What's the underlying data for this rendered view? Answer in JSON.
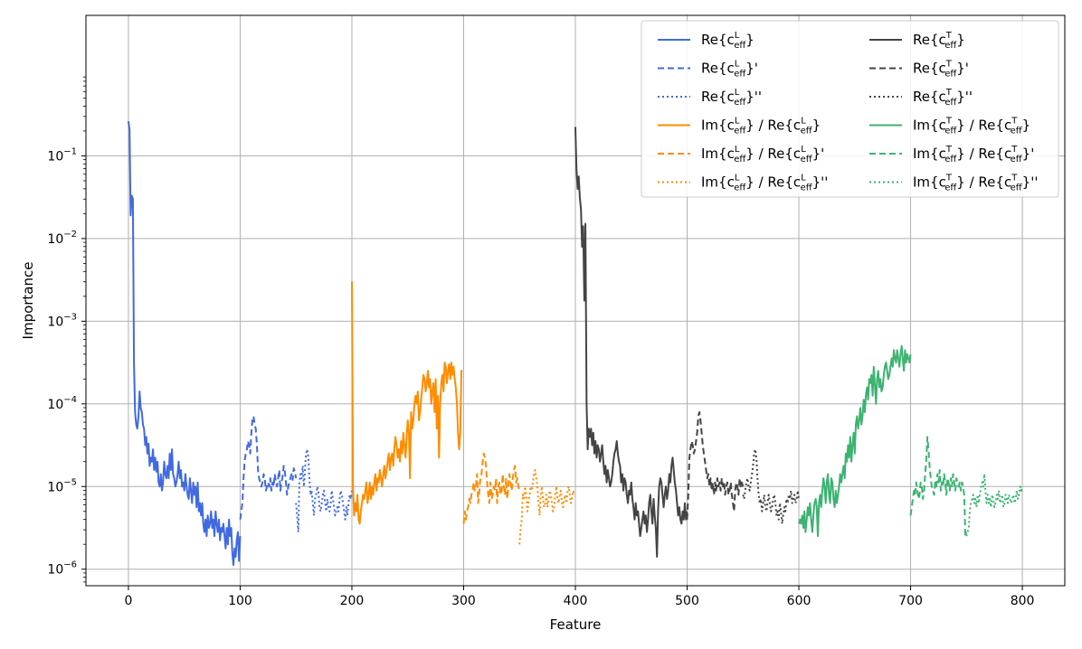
{
  "chart_data": {
    "type": "line",
    "xlabel": "Feature",
    "ylabel": "Importance",
    "xlim": [
      -38,
      838
    ],
    "ylim_log10": [
      -6.2,
      0.7
    ],
    "yscale": "log",
    "grid": true,
    "legend_position": "top-right",
    "legend_columns": 2,
    "x_ticks": [
      0,
      100,
      200,
      300,
      400,
      500,
      600,
      700,
      800
    ],
    "x_tick_labels": [
      "0",
      "100",
      "200",
      "300",
      "400",
      "500",
      "600",
      "700",
      "800"
    ],
    "y_ticks_log10": [
      -6,
      -5,
      -4,
      -3,
      -2,
      -1
    ],
    "y_tick_labels": [
      {
        "base": "10",
        "exp": "−6"
      },
      {
        "base": "10",
        "exp": "−5"
      },
      {
        "base": "10",
        "exp": "−4"
      },
      {
        "base": "10",
        "exp": "−3"
      },
      {
        "base": "10",
        "exp": "−2"
      },
      {
        "base": "10",
        "exp": "−1"
      }
    ],
    "series": [
      {
        "name": "Re{c_eff^L}",
        "legend": {
          "pre": "Re{c",
          "sub": "eff",
          "sup": "L",
          "post": "}"
        },
        "color": "#4169e1",
        "dash": "solid",
        "x_start": 0,
        "log10_values": [
          -0.58,
          -0.68,
          -1.72,
          -1.48,
          -1.52,
          -3.5,
          -4.1,
          -4.25,
          -4.3,
          -4.15,
          -3.85,
          -4.05,
          -4.1,
          -4.25,
          -4.3,
          -4.5,
          -4.4,
          -4.6,
          -4.48,
          -4.75,
          -4.65,
          -4.7,
          -4.55,
          -4.8,
          -4.65,
          -4.82,
          -4.7,
          -4.95,
          -5.0,
          -4.85,
          -5.05,
          -4.95,
          -4.7,
          -4.85,
          -4.9,
          -4.75,
          -4.9,
          -4.6,
          -4.8,
          -4.55,
          -4.85,
          -4.9,
          -5.0,
          -4.95,
          -4.85,
          -4.7,
          -4.9,
          -4.8,
          -5.0,
          -4.95,
          -5.05,
          -4.85,
          -5.0,
          -5.1,
          -5.15,
          -4.9,
          -5.05,
          -5.2,
          -4.95,
          -5.1,
          -5.0,
          -5.25,
          -4.95,
          -5.3,
          -5.2,
          -5.35,
          -5.2,
          -5.45,
          -5.55,
          -5.4,
          -5.6,
          -5.35,
          -5.5,
          -5.45,
          -5.3,
          -5.5,
          -5.4,
          -5.6,
          -5.3,
          -5.45,
          -5.55,
          -5.4,
          -5.65,
          -5.5,
          -5.55,
          -5.45,
          -5.6,
          -5.75,
          -5.5,
          -5.7,
          -5.4,
          -5.6,
          -5.5,
          -5.8,
          -5.95,
          -5.75,
          -5.85,
          -5.65,
          -5.55,
          -5.9,
          -5.6
        ],
        "smooth": false
      },
      {
        "name": "Re{c_eff^L}'",
        "legend": {
          "pre": "Re{c",
          "sub": "eff",
          "sup": "L",
          "post": "}'"
        },
        "color": "#4169e1",
        "dash": "dashed",
        "x_start": 100,
        "log10_values": [
          -5.4,
          -5.3,
          -5.2,
          -4.9,
          -4.7,
          -4.6,
          -4.55,
          -4.45,
          -4.5,
          -4.6,
          -4.35,
          -4.2,
          -4.15,
          -4.25,
          -4.3,
          -4.5,
          -4.8,
          -4.9,
          -4.95,
          -5.0,
          -4.95,
          -4.85,
          -4.9,
          -5.05,
          -5.0,
          -4.95,
          -5.0,
          -4.9,
          -5.05,
          -4.95,
          -5.0,
          -4.85,
          -4.95,
          -5.0,
          -4.9,
          -4.8,
          -5.05,
          -4.95,
          -4.88,
          -4.75,
          -4.82,
          -4.95,
          -5.1,
          -5.0,
          -4.95,
          -4.9,
          -4.85,
          -4.92,
          -4.78,
          -4.82,
          -4.9
        ],
        "smooth": false
      },
      {
        "name": "Re{c_eff^L}''",
        "legend": {
          "pre": "Re{c",
          "sub": "eff",
          "sup": "L",
          "post": "}''"
        },
        "color": "#4169e1",
        "dash": "dotted",
        "x_start": 150,
        "log10_values": [
          -5.2,
          -5.35,
          -5.55,
          -4.95,
          -4.85,
          -4.9,
          -4.75,
          -5.0,
          -4.8,
          -4.6,
          -4.55,
          -4.65,
          -4.9,
          -5.1,
          -5.05,
          -5.2,
          -5.35,
          -5.15,
          -5.1,
          -5.0,
          -5.05,
          -5.25,
          -5.3,
          -5.2,
          -5.1,
          -5.05,
          -5.2,
          -5.3,
          -5.15,
          -5.25,
          -5.3,
          -5.2,
          -5.05,
          -5.15,
          -5.25,
          -5.35,
          -5.3,
          -5.25,
          -5.3,
          -5.15,
          -5.05,
          -5.1,
          -5.2,
          -5.3,
          -5.4,
          -5.25,
          -5.35,
          -5.2,
          -5.1,
          -5.15,
          -5.05
        ],
        "smooth": false
      },
      {
        "name": "Im{c_eff^L} / Re{c_eff^L}",
        "legend": {
          "pre": "Im{c",
          "sub": "eff",
          "sup": "L",
          "post": "} / Re{c",
          "sub2": "eff",
          "sup2": "L",
          "post2": "}"
        },
        "color": "#ff8c00",
        "dash": "solid",
        "x_start": 200,
        "log10_values": [
          -2.52,
          -5.0,
          -5.35,
          -5.2,
          -5.3,
          -5.1,
          -5.4,
          -5.45,
          -5.3,
          -5.2,
          -5.1,
          -5.15,
          -5.05,
          -4.95,
          -5.2,
          -5.1,
          -4.95,
          -5.15,
          -5.0,
          -5.1,
          -4.95,
          -4.85,
          -5.05,
          -4.9,
          -4.95,
          -4.8,
          -4.9,
          -5.0,
          -4.85,
          -4.75,
          -4.9,
          -4.8,
          -4.7,
          -4.6,
          -4.8,
          -4.65,
          -4.6,
          -4.75,
          -4.55,
          -4.4,
          -4.5,
          -4.65,
          -4.55,
          -4.7,
          -4.45,
          -4.6,
          -4.35,
          -4.5,
          -4.65,
          -4.4,
          -4.2,
          -4.35,
          -4.9,
          -4.1,
          -4.3,
          -4.2,
          -4.0,
          -3.9,
          -4.0,
          -3.85,
          -4.2,
          -4.1,
          -3.95,
          -3.8,
          -3.65,
          -3.7,
          -3.85,
          -3.75,
          -3.6,
          -3.8,
          -3.7,
          -4.0,
          -3.85,
          -3.75,
          -4.1,
          -3.7,
          -4.3,
          -3.9,
          -4.65,
          -4.0,
          -3.75,
          -3.65,
          -3.85,
          -3.5,
          -3.55,
          -3.75,
          -3.6,
          -3.52,
          -3.7,
          -3.5,
          -3.65,
          -3.55,
          -3.7,
          -3.8,
          -4.0,
          -4.35,
          -4.55,
          -4.35,
          -3.6,
          -3.6
        ],
        "smooth": false
      },
      {
        "name": "Im{c_eff^L} / Re{c_eff^L}'",
        "legend": {
          "pre": "Im{c",
          "sub": "eff",
          "sup": "L",
          "post": "} / Re{c",
          "sub2": "eff",
          "sup2": "L",
          "post2": "}'"
        },
        "color": "#ff8c00",
        "dash": "dashed",
        "x_start": 300,
        "log10_values": [
          -5.45,
          -5.3,
          -5.4,
          -5.3,
          -5.25,
          -5.15,
          -5.2,
          -5.1,
          -5.05,
          -4.95,
          -5.05,
          -5.0,
          -4.85,
          -5.2,
          -5.05,
          -4.9,
          -4.85,
          -4.7,
          -4.6,
          -4.65,
          -4.75,
          -4.95,
          -5.1,
          -5.2,
          -4.95,
          -5.15,
          -5.1,
          -5.0,
          -5.05,
          -4.9,
          -5.2,
          -5.0,
          -4.95,
          -5.1,
          -5.05,
          -4.85,
          -5.0,
          -5.1,
          -4.9,
          -5.15,
          -5.0,
          -4.85,
          -4.95,
          -5.05,
          -4.9,
          -4.8,
          -4.75,
          -4.95,
          -4.9,
          -5.0,
          -5.05
        ],
        "smooth": false
      },
      {
        "name": "Im{c_eff^L} / Re{c_eff^L}''",
        "legend": {
          "pre": "Im{c",
          "sub": "eff",
          "sup": "L",
          "post": "} / Re{c",
          "sub2": "eff",
          "sup2": "L",
          "post2": "}''"
        },
        "color": "#ff8c00",
        "dash": "dotted",
        "x_start": 350,
        "log10_values": [
          -5.7,
          -5.5,
          -5.4,
          -5.1,
          -5.15,
          -5.0,
          -5.1,
          -5.3,
          -5.2,
          -5.1,
          -5.0,
          -5.05,
          -4.95,
          -4.85,
          -4.8,
          -4.9,
          -5.0,
          -5.2,
          -5.35,
          -5.1,
          -5.0,
          -5.15,
          -5.25,
          -5.2,
          -5.1,
          -5.25,
          -5.15,
          -5.05,
          -5.1,
          -5.2,
          -5.3,
          -5.25,
          -5.1,
          -5.0,
          -5.15,
          -5.2,
          -5.1,
          -5.05,
          -5.2,
          -5.25,
          -5.15,
          -5.1,
          -5.2,
          -5.05,
          -5.0,
          -5.1,
          -5.2,
          -5.15,
          -5.05,
          -5.1,
          -5.1
        ],
        "smooth": false
      },
      {
        "name": "Re{c_eff^T}",
        "legend": {
          "pre": "Re{c",
          "sub": "eff",
          "sup": "T",
          "post": "}"
        },
        "color": "#444444",
        "dash": "solid",
        "x_start": 400,
        "log10_values": [
          -0.65,
          -1.15,
          -1.4,
          -1.25,
          -1.5,
          -1.65,
          -2.1,
          -1.85,
          -2.75,
          -1.82,
          -4.0,
          -4.55,
          -4.3,
          -4.4,
          -4.3,
          -4.5,
          -4.35,
          -4.6,
          -4.45,
          -4.65,
          -4.5,
          -4.55,
          -4.7,
          -4.6,
          -4.5,
          -4.7,
          -4.85,
          -4.75,
          -4.95,
          -4.8,
          -4.9,
          -5.0,
          -4.95,
          -4.85,
          -4.7,
          -4.6,
          -4.55,
          -4.45,
          -4.6,
          -4.7,
          -4.75,
          -4.95,
          -4.85,
          -5.05,
          -4.9,
          -4.95,
          -5.1,
          -5.2,
          -5.05,
          -5.1,
          -4.95,
          -5.15,
          -5.25,
          -5.4,
          -5.2,
          -5.35,
          -5.3,
          -5.45,
          -5.6,
          -5.5,
          -5.4,
          -5.3,
          -5.45,
          -5.35,
          -5.55,
          -5.4,
          -5.2,
          -5.1,
          -5.3,
          -5.45,
          -5.15,
          -5.35,
          -5.5,
          -5.85,
          -5.3,
          -5.0,
          -4.9,
          -4.95,
          -5.1,
          -5.25,
          -5.1,
          -5.0,
          -5.15,
          -5.05,
          -4.85,
          -4.95,
          -4.75,
          -4.65,
          -4.8,
          -4.95,
          -5.05,
          -5.2,
          -5.35,
          -5.25,
          -5.4,
          -5.45,
          -5.3,
          -5.4,
          -5.2,
          -5.4,
          -5.3
        ],
        "smooth": false
      },
      {
        "name": "Re{c_eff^T}'",
        "legend": {
          "pre": "Re{c",
          "sub": "eff",
          "sup": "T",
          "post": "}'"
        },
        "color": "#444444",
        "dash": "dashed",
        "x_start": 500,
        "log10_values": [
          -5.4,
          -5.1,
          -4.65,
          -4.55,
          -4.45,
          -4.5,
          -4.6,
          -4.55,
          -4.45,
          -4.35,
          -4.15,
          -4.1,
          -4.2,
          -4.35,
          -4.5,
          -4.6,
          -4.7,
          -4.8,
          -4.9,
          -4.85,
          -5.0,
          -4.9,
          -5.05,
          -4.95,
          -5.1,
          -4.95,
          -5.05,
          -4.9,
          -5.0,
          -4.95,
          -5.05,
          -4.9,
          -5.0,
          -4.95,
          -5.1,
          -5.0,
          -4.95,
          -5.1,
          -5.05,
          -4.95,
          -5.1,
          -5.2,
          -5.3,
          -5.05,
          -4.95,
          -5.0,
          -5.1,
          -4.9,
          -5.0,
          -4.95,
          -5.0
        ],
        "smooth": false
      },
      {
        "name": "Re{c_eff^T}''",
        "legend": {
          "pre": "Re{c",
          "sub": "eff",
          "sup": "T",
          "post": "}''"
        },
        "color": "#444444",
        "dash": "dotted",
        "x_start": 550,
        "log10_values": [
          -5.1,
          -5.15,
          -5.05,
          -4.95,
          -4.9,
          -5.0,
          -5.05,
          -4.95,
          -4.85,
          -4.75,
          -4.6,
          -4.55,
          -4.65,
          -4.9,
          -5.1,
          -5.2,
          -5.15,
          -5.3,
          -5.2,
          -5.1,
          -5.25,
          -5.3,
          -5.2,
          -5.1,
          -5.2,
          -5.3,
          -5.25,
          -5.15,
          -5.1,
          -5.2,
          -5.35,
          -5.3,
          -5.4,
          -5.2,
          -5.3,
          -5.45,
          -5.35,
          -5.25,
          -5.3,
          -5.15,
          -5.2,
          -5.1,
          -5.15,
          -5.05,
          -5.2,
          -5.15,
          -5.1,
          -5.2,
          -5.15,
          -5.05,
          -5.15
        ],
        "smooth": false
      },
      {
        "name": "Im{c_eff^T} / Re{c_eff^T}",
        "legend": {
          "pre": "Im{c",
          "sub": "eff",
          "sup": "T",
          "post": "} / Re{c",
          "sub2": "eff",
          "sup2": "T",
          "post2": "}"
        },
        "color": "#3cb371",
        "dash": "solid",
        "x_start": 600,
        "log10_values": [
          -5.45,
          -5.4,
          -5.45,
          -5.35,
          -5.5,
          -5.3,
          -5.55,
          -5.4,
          -5.25,
          -5.35,
          -5.2,
          -5.4,
          -5.55,
          -5.35,
          -5.2,
          -5.15,
          -5.25,
          -5.6,
          -5.2,
          -5.1,
          -5.25,
          -5.05,
          -4.9,
          -5.0,
          -5.2,
          -4.95,
          -4.85,
          -5.1,
          -5.2,
          -4.9,
          -4.95,
          -5.15,
          -5.25,
          -5.05,
          -5.2,
          -5.1,
          -5.0,
          -4.85,
          -4.95,
          -4.85,
          -4.75,
          -4.9,
          -4.6,
          -4.7,
          -4.5,
          -4.65,
          -4.4,
          -4.7,
          -4.5,
          -4.35,
          -4.6,
          -4.25,
          -4.15,
          -4.3,
          -4.2,
          -4.05,
          -4.25,
          -4.15,
          -3.95,
          -4.1,
          -3.9,
          -3.8,
          -3.95,
          -3.7,
          -3.75,
          -3.65,
          -3.9,
          -3.55,
          -3.75,
          -4.0,
          -3.7,
          -3.6,
          -3.8,
          -3.7,
          -3.85,
          -3.8,
          -3.65,
          -3.55,
          -3.5,
          -3.6,
          -3.7,
          -3.65,
          -3.55,
          -3.45,
          -3.55,
          -3.35,
          -3.45,
          -3.5,
          -3.35,
          -3.45,
          -3.55,
          -3.4,
          -3.3,
          -3.45,
          -3.6,
          -3.35,
          -3.5,
          -3.4,
          -3.45,
          -3.5,
          -3.4
        ],
        "smooth": false
      },
      {
        "name": "Im{c_eff^T} / Re{c_eff^T}'",
        "legend": {
          "pre": "Im{c",
          "sub": "eff",
          "sup": "T",
          "post": "} / Re{c",
          "sub2": "eff",
          "sup2": "T",
          "post2": "}'"
        },
        "color": "#3cb371",
        "dash": "dashed",
        "x_start": 700,
        "log10_values": [
          -5.35,
          -5.25,
          -5.15,
          -5.05,
          -5.1,
          -4.95,
          -5.05,
          -5.15,
          -5.1,
          -4.95,
          -5.0,
          -5.15,
          -5.05,
          -4.85,
          -4.7,
          -4.4,
          -4.55,
          -4.75,
          -4.9,
          -5.0,
          -5.05,
          -5.1,
          -4.95,
          -5.0,
          -4.85,
          -4.95,
          -4.8,
          -5.05,
          -4.95,
          -5.0,
          -4.85,
          -4.95,
          -5.1,
          -4.9,
          -4.95,
          -5.05,
          -4.9,
          -5.0,
          -4.85,
          -4.95,
          -5.05,
          -4.9,
          -4.95,
          -5.0,
          -4.95,
          -5.05,
          -4.95,
          -5.0,
          -5.1,
          -5.6,
          -5.55
        ],
        "smooth": false
      },
      {
        "name": "Im{c_eff^T} / Re{c_eff^T}''",
        "legend": {
          "pre": "Im{c",
          "sub": "eff",
          "sup": "T",
          "post": "} / Re{c",
          "sub2": "eff",
          "sup2": "T",
          "post2": "}''"
        },
        "color": "#3cb371",
        "dash": "dotted",
        "x_start": 750,
        "log10_values": [
          -5.6,
          -5.55,
          -5.5,
          -5.3,
          -5.2,
          -5.15,
          -5.1,
          -5.2,
          -5.15,
          -5.25,
          -5.1,
          -5.2,
          -5.1,
          -5.0,
          -4.95,
          -5.0,
          -4.85,
          -5.05,
          -5.2,
          -5.1,
          -5.2,
          -5.15,
          -5.25,
          -5.1,
          -5.15,
          -5.25,
          -5.2,
          -5.1,
          -5.15,
          -5.05,
          -5.2,
          -5.15,
          -5.1,
          -5.25,
          -5.2,
          -5.1,
          -5.15,
          -5.2,
          -5.1,
          -5.15,
          -5.2,
          -5.15,
          -5.1,
          -5.2,
          -5.15,
          -5.05,
          -5.15,
          -5.1,
          -5.0,
          -5.05,
          -5.0
        ],
        "smooth": false
      }
    ]
  }
}
